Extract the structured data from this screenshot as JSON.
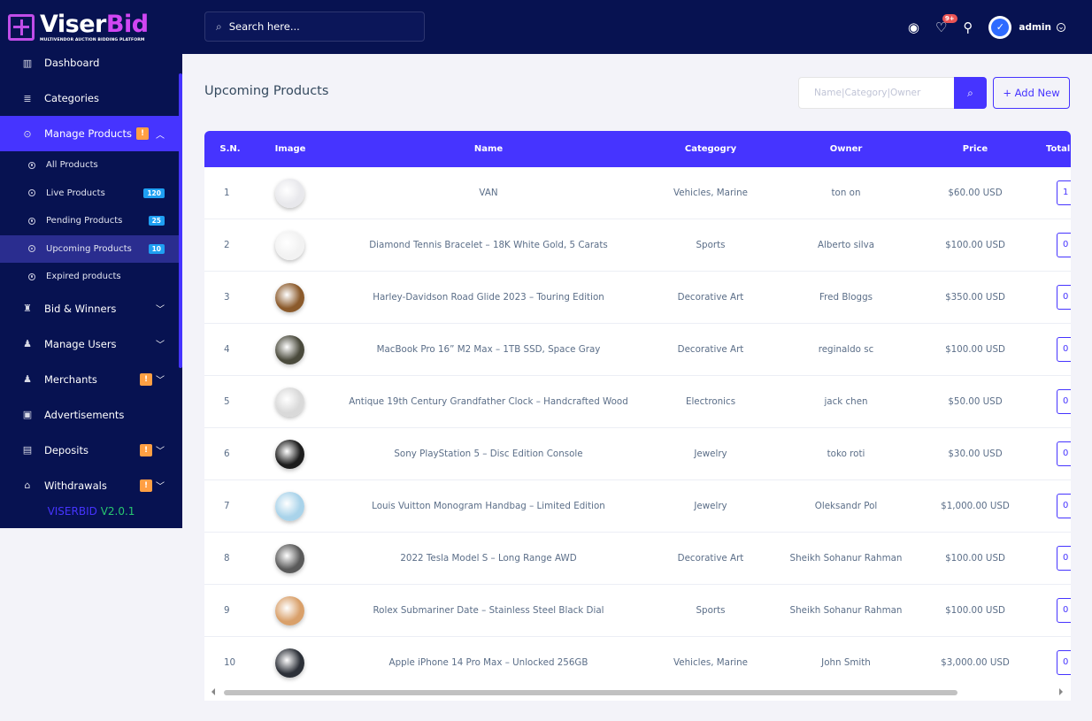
{
  "brand": {
    "name_part1": "Viser",
    "name_part2": "Bid",
    "tagline": "MULTIVENDOR AUCTION BIDDING PLATFORM",
    "version_name": "VISERBID",
    "version_number": "V2.0.1"
  },
  "topbar": {
    "search_placeholder": "Search here...",
    "notification_count": "9+",
    "admin_label": "admin"
  },
  "sidebar": {
    "items": [
      {
        "label": "Dashboard",
        "icon": "dashboard-icon"
      },
      {
        "label": "Categories",
        "icon": "categories-icon"
      },
      {
        "label": "Manage Products",
        "icon": "products-icon",
        "warn": "!"
      },
      {
        "label": "Bid & Winners",
        "icon": "trophy-icon"
      },
      {
        "label": "Manage Users",
        "icon": "users-icon"
      },
      {
        "label": "Merchants",
        "icon": "merchants-icon",
        "warn": "!"
      },
      {
        "label": "Advertisements",
        "icon": "ad-icon"
      },
      {
        "label": "Deposits",
        "icon": "deposit-icon",
        "warn": "!"
      },
      {
        "label": "Withdrawals",
        "icon": "bank-icon",
        "warn": "!"
      }
    ],
    "sub_items": [
      {
        "label": "All Products",
        "count": ""
      },
      {
        "label": "Live Products",
        "count": "120"
      },
      {
        "label": "Pending Products",
        "count": "25"
      },
      {
        "label": "Upcoming Products",
        "count": "10"
      },
      {
        "label": "Expired products",
        "count": ""
      }
    ]
  },
  "page": {
    "title": "Upcoming Products",
    "filter_placeholder": "Name|Category|Owner",
    "add_new_label": "+ Add New"
  },
  "table": {
    "headers": {
      "sn": "S.N.",
      "image": "Image",
      "name": "Name",
      "category": "Categogry",
      "owner": "Owner",
      "price": "Price",
      "total": "Total"
    },
    "rows": [
      {
        "sn": "1",
        "name": "VAN",
        "category": "Vehicles, Marine",
        "owner": "ton on",
        "price": "$60.00 USD",
        "total": "1",
        "thumb_color": "#e8e8ec"
      },
      {
        "sn": "2",
        "name": "Diamond Tennis Bracelet – 18K White Gold, 5 Carats",
        "category": "Sports",
        "owner": "Alberto silva",
        "price": "$100.00 USD",
        "total": "0",
        "thumb_color": "#f2f2f2"
      },
      {
        "sn": "3",
        "name": "Harley-Davidson Road Glide 2023 – Touring Edition",
        "category": "Decorative Art",
        "owner": "Fred Bloggs",
        "price": "$350.00 USD",
        "total": "0",
        "thumb_color": "#8b5a2b"
      },
      {
        "sn": "4",
        "name": "MacBook Pro 16” M2 Max – 1TB SSD, Space Gray",
        "category": "Decorative Art",
        "owner": "reginaldo sc",
        "price": "$100.00 USD",
        "total": "0",
        "thumb_color": "#4a4a3c"
      },
      {
        "sn": "5",
        "name": "Antique 19th Century Grandfather Clock – Handcrafted Wood",
        "category": "Electronics",
        "owner": "jack chen",
        "price": "$50.00 USD",
        "total": "0",
        "thumb_color": "#d9d9d9"
      },
      {
        "sn": "6",
        "name": "Sony PlayStation 5 – Disc Edition Console",
        "category": "Jewelry",
        "owner": "toko roti",
        "price": "$30.00 USD",
        "total": "0",
        "thumb_color": "#1d1d1d"
      },
      {
        "sn": "7",
        "name": "Louis Vuitton Monogram Handbag – Limited Edition",
        "category": "Jewelry",
        "owner": "Oleksandr Pol",
        "price": "$1,000.00 USD",
        "total": "0",
        "thumb_color": "#a9d3ea"
      },
      {
        "sn": "8",
        "name": "2022 Tesla Model S – Long Range AWD",
        "category": "Decorative Art",
        "owner": "Sheikh Sohanur Rahman",
        "price": "$100.00 USD",
        "total": "0",
        "thumb_color": "#5a5a5a"
      },
      {
        "sn": "9",
        "name": "Rolex Submariner Date – Stainless Steel Black Dial",
        "category": "Sports",
        "owner": "Sheikh Sohanur Rahman",
        "price": "$100.00 USD",
        "total": "0",
        "thumb_color": "#d9a06a"
      },
      {
        "sn": "10",
        "name": "Apple iPhone 14 Pro Max – Unlocked 256GB",
        "category": "Vehicles, Marine",
        "owner": "John Smith",
        "price": "$3,000.00 USD",
        "total": "0",
        "thumb_color": "#2c3038"
      }
    ]
  },
  "colors": {
    "sidebar_bg": "#071251",
    "accent": "#4634ff",
    "warning": "#ff9f43",
    "count_badge": "#1e9ff2",
    "version_green": "#28c76f"
  }
}
